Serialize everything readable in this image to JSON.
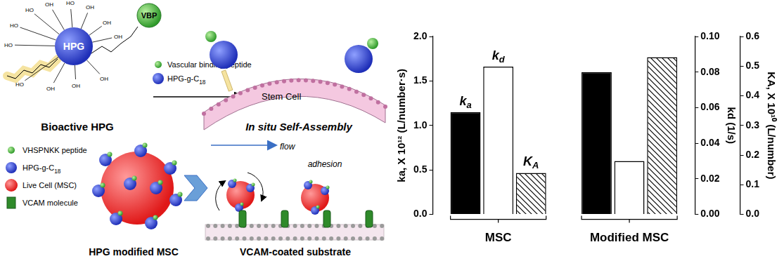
{
  "diagram": {
    "top_left": {
      "title": "Bioactive HPG",
      "core": "HPG",
      "peptide": "VBP",
      "hydroxyl_groups": [
        "HO",
        "OH",
        "HO",
        "OH",
        "HO",
        "OH",
        "HO",
        "OH",
        "HO",
        "OH",
        "OH",
        "OH"
      ]
    },
    "legend_top": [
      {
        "text": "Vascular binding peptide",
        "symbol": "peptide"
      },
      {
        "text": "HPG-g-C18",
        "symbol": "hpg"
      }
    ],
    "top_right": {
      "cell": "Stem Cell",
      "title": "In situ Self-Assembly"
    },
    "legend_bottom": [
      {
        "text": "VHSPNKK peptide",
        "symbol": "peptide"
      },
      {
        "text": "HPG-g-C18",
        "symbol": "hpg"
      },
      {
        "text": "Live Cell (MSC)",
        "symbol": "cell"
      },
      {
        "text": "VCAM molecule",
        "symbol": "vcam"
      }
    ],
    "bottom_middle": {
      "title": "HPG modified MSC"
    },
    "bottom_right": {
      "flow": "flow",
      "adhesion": "adhesion",
      "title": "VCAM-coated substrate"
    }
  },
  "chart_data": {
    "type": "bar",
    "categories": [
      "MSC",
      "Modified MSC"
    ],
    "series": [
      {
        "name": "ka",
        "color": "#000000",
        "values": [
          1.15,
          1.6
        ]
      },
      {
        "name": "kd",
        "color": "#ffffff",
        "values": [
          0.083,
          0.03
        ],
        "axis": "y2"
      },
      {
        "name": "KA",
        "color": "#000000",
        "values": [
          0.14,
          0.53
        ],
        "axis": "y3"
      }
    ],
    "ylabel": "ka, X 10¹² (L/number·s)",
    "y2label": "kd (1/s)",
    "y3label": "KA, X 10¹⁰ (L/number)",
    "ylim": [
      0,
      2
    ],
    "yticks": [
      {
        "value": 0,
        "label": "0.0"
      },
      {
        "value": 0.5,
        "label": "0.5"
      },
      {
        "value": 1,
        "label": "1.0"
      },
      {
        "value": 1.5,
        "label": "1.5"
      },
      {
        "value": 2,
        "label": "2.0"
      }
    ],
    "y2lim": [
      0,
      0.1
    ],
    "y2ticks": [
      {
        "value": 0,
        "label": "0.00"
      },
      {
        "value": 0.02,
        "label": "0.02"
      },
      {
        "value": 0.04,
        "label": "0.04"
      },
      {
        "value": 0.06,
        "label": "0.06"
      },
      {
        "value": 0.08,
        "label": "0.08"
      },
      {
        "value": 0.1,
        "label": "0.10"
      }
    ],
    "y3lim": [
      0,
      0.6
    ],
    "y3ticks": [
      {
        "value": 0,
        "label": "0.0"
      },
      {
        "value": 0.1,
        "label": "0.1"
      },
      {
        "value": 0.2,
        "label": "0.2"
      },
      {
        "value": 0.3,
        "label": "0.3"
      },
      {
        "value": 0.4,
        "label": "0.4"
      },
      {
        "value": 0.5,
        "label": "0.5"
      },
      {
        "value": 0.6,
        "label": "0.6"
      }
    ],
    "grid": false
  }
}
